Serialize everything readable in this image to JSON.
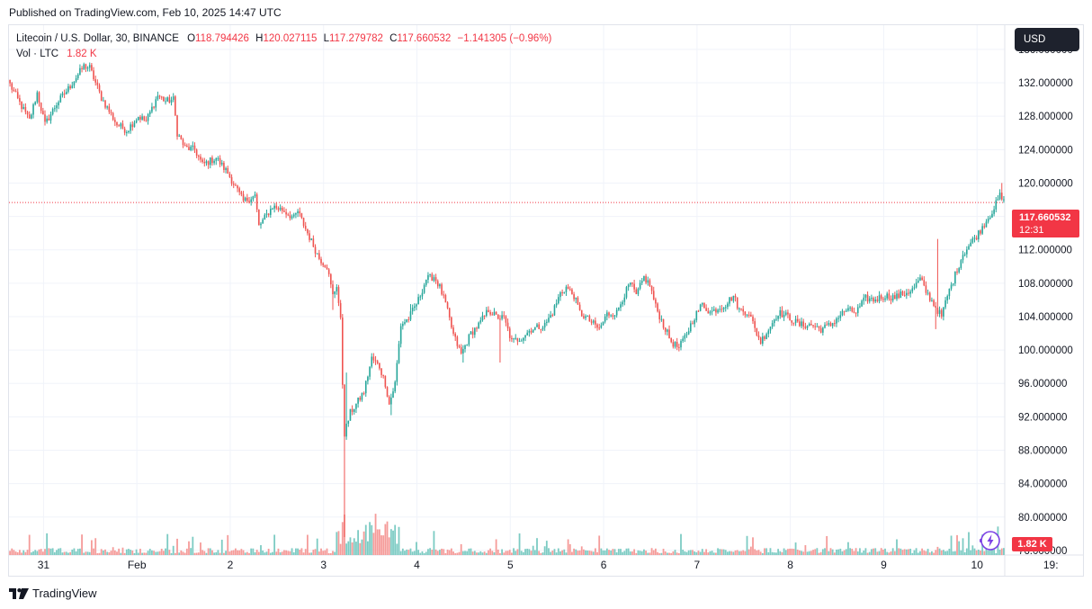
{
  "published": "Published on TradingView.com, Feb 10, 2025 14:47 UTC",
  "legend": {
    "title": "Litecoin / U.S. Dollar, 30, BINANCE",
    "o_label": "O",
    "o_value": "118.794426",
    "h_label": "H",
    "h_value": "120.027115",
    "l_label": "L",
    "l_value": "117.279782",
    "c_label": "C",
    "c_value": "117.660532",
    "change": "−1.141305 (−0.96%)",
    "vol_label": "Vol · LTC",
    "vol_value": "1.82 K"
  },
  "currency_button": "USD",
  "last_price": {
    "price": "117.660532",
    "countdown": "12:31"
  },
  "volume_badge": "1.82 K",
  "brand": "TradingView",
  "colors": {
    "up": "#26a69a",
    "down": "#ef5350",
    "up_vol": "#7ccbc3",
    "down_vol": "#f59b99",
    "accent": "#f23645",
    "grid": "#f0f3fa"
  },
  "chart_data": {
    "type": "candlestick",
    "symbol": "Litecoin / U.S. Dollar",
    "interval": "30",
    "exchange": "BINANCE",
    "y_tick_labels": [
      "136.000000",
      "132.000000",
      "128.000000",
      "124.000000",
      "120.000000",
      "116.000000",
      "112.000000",
      "108.000000",
      "104.000000",
      "100.000000",
      "96.000000",
      "92.000000",
      "88.000000",
      "84.000000",
      "80.000000",
      "76.000000"
    ],
    "y_ticks": [
      136,
      132,
      128,
      124,
      120,
      116,
      112,
      108,
      104,
      100,
      96,
      92,
      88,
      84,
      80,
      76
    ],
    "x_ticks": [
      {
        "label": "31",
        "day": 0
      },
      {
        "label": "Feb",
        "day": 1
      },
      {
        "label": "2",
        "day": 2
      },
      {
        "label": "3",
        "day": 3
      },
      {
        "label": "4",
        "day": 4
      },
      {
        "label": "5",
        "day": 5
      },
      {
        "label": "6",
        "day": 6
      },
      {
        "label": "7",
        "day": 7
      },
      {
        "label": "8",
        "day": 8
      },
      {
        "label": "9",
        "day": 9
      },
      {
        "label": "10",
        "day": 10
      },
      {
        "label": "19:",
        "day": 10.79
      }
    ],
    "x_start_day": -0.37,
    "bars_per_day": 48,
    "price_path": [
      [
        0,
        131.8
      ],
      [
        4,
        130.0
      ],
      [
        10,
        127.5
      ],
      [
        14,
        130.8
      ],
      [
        18,
        127.0
      ],
      [
        24,
        129.5
      ],
      [
        30,
        131.3
      ],
      [
        38,
        134.0
      ],
      [
        41,
        133.8
      ],
      [
        47,
        130.2
      ],
      [
        55,
        127.0
      ],
      [
        60,
        126.3
      ],
      [
        66,
        128.0
      ],
      [
        70,
        127.4
      ],
      [
        76,
        130.5
      ],
      [
        80,
        129.8
      ],
      [
        84,
        130.0
      ],
      [
        86,
        126.0
      ],
      [
        90,
        124.2
      ],
      [
        95,
        124.0
      ],
      [
        99,
        122.2
      ],
      [
        106,
        123.0
      ],
      [
        112,
        121.2
      ],
      [
        116,
        119.5
      ],
      [
        120,
        117.8
      ],
      [
        126,
        118.5
      ],
      [
        128,
        114.8
      ],
      [
        135,
        117.2
      ],
      [
        140,
        116.8
      ],
      [
        146,
        115.8
      ],
      [
        148,
        116.6
      ],
      [
        153,
        114.0
      ],
      [
        159,
        111.0
      ],
      [
        163,
        110.0
      ],
      [
        166,
        106.5
      ],
      [
        168,
        107.8
      ],
      [
        170,
        103.5
      ],
      [
        171,
        96.0
      ],
      [
        172,
        90.0
      ],
      [
        175,
        92.5
      ],
      [
        178,
        93.5
      ],
      [
        182,
        95.0
      ],
      [
        186,
        99.0
      ],
      [
        190,
        98.0
      ],
      [
        193,
        96.0
      ],
      [
        195,
        93.5
      ],
      [
        198,
        96.0
      ],
      [
        201,
        103.0
      ],
      [
        205,
        103.8
      ],
      [
        210,
        106.0
      ],
      [
        214,
        108.5
      ],
      [
        218,
        108.8
      ],
      [
        221,
        107.5
      ],
      [
        224,
        105.5
      ],
      [
        228,
        101.8
      ],
      [
        232,
        99.5
      ],
      [
        237,
        102.0
      ],
      [
        241,
        103.0
      ],
      [
        246,
        104.8
      ],
      [
        250,
        104.0
      ],
      [
        254,
        103.8
      ],
      [
        258,
        101.0
      ],
      [
        263,
        101.5
      ],
      [
        268,
        102.5
      ],
      [
        275,
        103.0
      ],
      [
        279,
        104.5
      ],
      [
        283,
        106.8
      ],
      [
        286,
        107.5
      ],
      [
        290,
        106.5
      ],
      [
        293,
        104.5
      ],
      [
        298,
        103.5
      ],
      [
        303,
        102.5
      ],
      [
        307,
        104.3
      ],
      [
        312,
        104.5
      ],
      [
        315,
        106.2
      ],
      [
        319,
        108.0
      ],
      [
        322,
        106.5
      ],
      [
        326,
        108.7
      ],
      [
        329,
        107.8
      ],
      [
        332,
        105.2
      ],
      [
        336,
        103.0
      ],
      [
        340,
        101.0
      ],
      [
        344,
        100.2
      ],
      [
        348,
        102.0
      ],
      [
        352,
        104.0
      ],
      [
        356,
        105.5
      ],
      [
        360,
        104.5
      ],
      [
        364,
        105.0
      ],
      [
        368,
        105.5
      ],
      [
        372,
        106.5
      ],
      [
        375,
        104.8
      ],
      [
        380,
        104.5
      ],
      [
        383,
        102.5
      ],
      [
        386,
        101.0
      ],
      [
        390,
        102.5
      ],
      [
        395,
        104.5
      ],
      [
        400,
        104.0
      ],
      [
        406,
        103.0
      ],
      [
        412,
        103.0
      ],
      [
        417,
        102.5
      ],
      [
        422,
        103.0
      ],
      [
        426,
        104.0
      ],
      [
        430,
        104.8
      ],
      [
        435,
        104.5
      ],
      [
        440,
        106.2
      ],
      [
        444,
        106.0
      ],
      [
        450,
        106.5
      ],
      [
        455,
        106.3
      ],
      [
        460,
        106.8
      ],
      [
        464,
        107.2
      ],
      [
        468,
        108.5
      ],
      [
        471,
        107.0
      ],
      [
        475,
        105.5
      ],
      [
        479,
        104.0
      ],
      [
        482,
        106.5
      ],
      [
        486,
        109.0
      ],
      [
        490,
        111.5
      ],
      [
        494,
        112.8
      ],
      [
        498,
        114.0
      ],
      [
        502,
        115.5
      ],
      [
        506,
        117.0
      ],
      [
        509,
        118.5
      ],
      [
        511,
        117.7
      ]
    ],
    "spike_bars": [
      [
        166,
        104.8
      ],
      [
        171,
        104.0
      ],
      [
        172,
        77.6
      ],
      [
        173,
        97.3
      ],
      [
        196,
        92.2
      ],
      [
        206,
        105.5
      ],
      [
        233,
        98.5
      ],
      [
        252,
        98.5
      ],
      [
        476,
        102.5
      ],
      [
        477,
        113.3
      ],
      [
        510,
        120.0
      ]
    ],
    "n_bars": 512,
    "volume_max": 2.7,
    "last_price": 117.660532,
    "ylim": [
      75.45,
      138.9
    ]
  }
}
